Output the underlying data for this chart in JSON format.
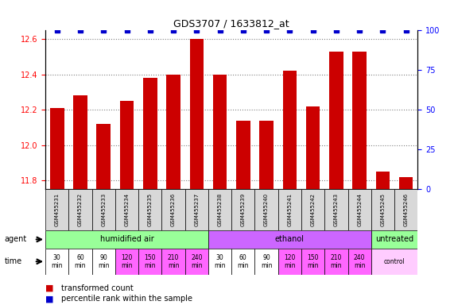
{
  "title": "GDS3707 / 1633812_at",
  "samples": [
    "GSM455231",
    "GSM455232",
    "GSM455233",
    "GSM455234",
    "GSM455235",
    "GSM455236",
    "GSM455237",
    "GSM455238",
    "GSM455239",
    "GSM455240",
    "GSM455241",
    "GSM455242",
    "GSM455243",
    "GSM455244",
    "GSM455245",
    "GSM455246"
  ],
  "bar_values": [
    12.21,
    12.28,
    12.12,
    12.25,
    12.38,
    12.4,
    12.6,
    12.4,
    12.14,
    12.14,
    12.42,
    12.22,
    12.53,
    12.53,
    11.85,
    11.82
  ],
  "percentile_values": [
    100,
    100,
    100,
    100,
    100,
    100,
    100,
    100,
    100,
    100,
    100,
    100,
    100,
    100,
    100,
    100
  ],
  "ylim_left": [
    11.75,
    12.65
  ],
  "ylim_right": [
    0,
    100
  ],
  "yticks_left": [
    11.8,
    12.0,
    12.2,
    12.4,
    12.6
  ],
  "yticks_right": [
    0,
    25,
    50,
    75,
    100
  ],
  "bar_color": "#cc0000",
  "dot_color": "#0000cc",
  "agent_groups": [
    {
      "label": "humidified air",
      "start": 0,
      "end": 7,
      "color": "#99ff99"
    },
    {
      "label": "ethanol",
      "start": 7,
      "end": 14,
      "color": "#cc66ff"
    },
    {
      "label": "untreated",
      "start": 14,
      "end": 16,
      "color": "#99ff99"
    }
  ],
  "time_groups": [
    {
      "label": "30\nmin",
      "start": 0,
      "end": 1,
      "color": "#ffffff"
    },
    {
      "label": "60\nmin",
      "start": 1,
      "end": 2,
      "color": "#ffffff"
    },
    {
      "label": "90\nmin",
      "start": 2,
      "end": 3,
      "color": "#ffffff"
    },
    {
      "label": "120\nmin",
      "start": 3,
      "end": 4,
      "color": "#ff66ff"
    },
    {
      "label": "150\nmin",
      "start": 4,
      "end": 5,
      "color": "#ff66ff"
    },
    {
      "label": "210\nmin",
      "start": 5,
      "end": 6,
      "color": "#ff66ff"
    },
    {
      "label": "240\nmin",
      "start": 6,
      "end": 7,
      "color": "#ff66ff"
    },
    {
      "label": "30\nmin",
      "start": 7,
      "end": 8,
      "color": "#ffffff"
    },
    {
      "label": "60\nmin",
      "start": 8,
      "end": 9,
      "color": "#ffffff"
    },
    {
      "label": "90\nmin",
      "start": 9,
      "end": 10,
      "color": "#ffffff"
    },
    {
      "label": "120\nmin",
      "start": 10,
      "end": 11,
      "color": "#ff66ff"
    },
    {
      "label": "150\nmin",
      "start": 11,
      "end": 12,
      "color": "#ff66ff"
    },
    {
      "label": "210\nmin",
      "start": 12,
      "end": 13,
      "color": "#ff66ff"
    },
    {
      "label": "240\nmin",
      "start": 13,
      "end": 14,
      "color": "#ff66ff"
    },
    {
      "label": "control",
      "start": 14,
      "end": 16,
      "color": "#ffccff"
    }
  ],
  "xlabel_rotation": 90,
  "grid_style": "dotted",
  "background_color": "#ffffff"
}
